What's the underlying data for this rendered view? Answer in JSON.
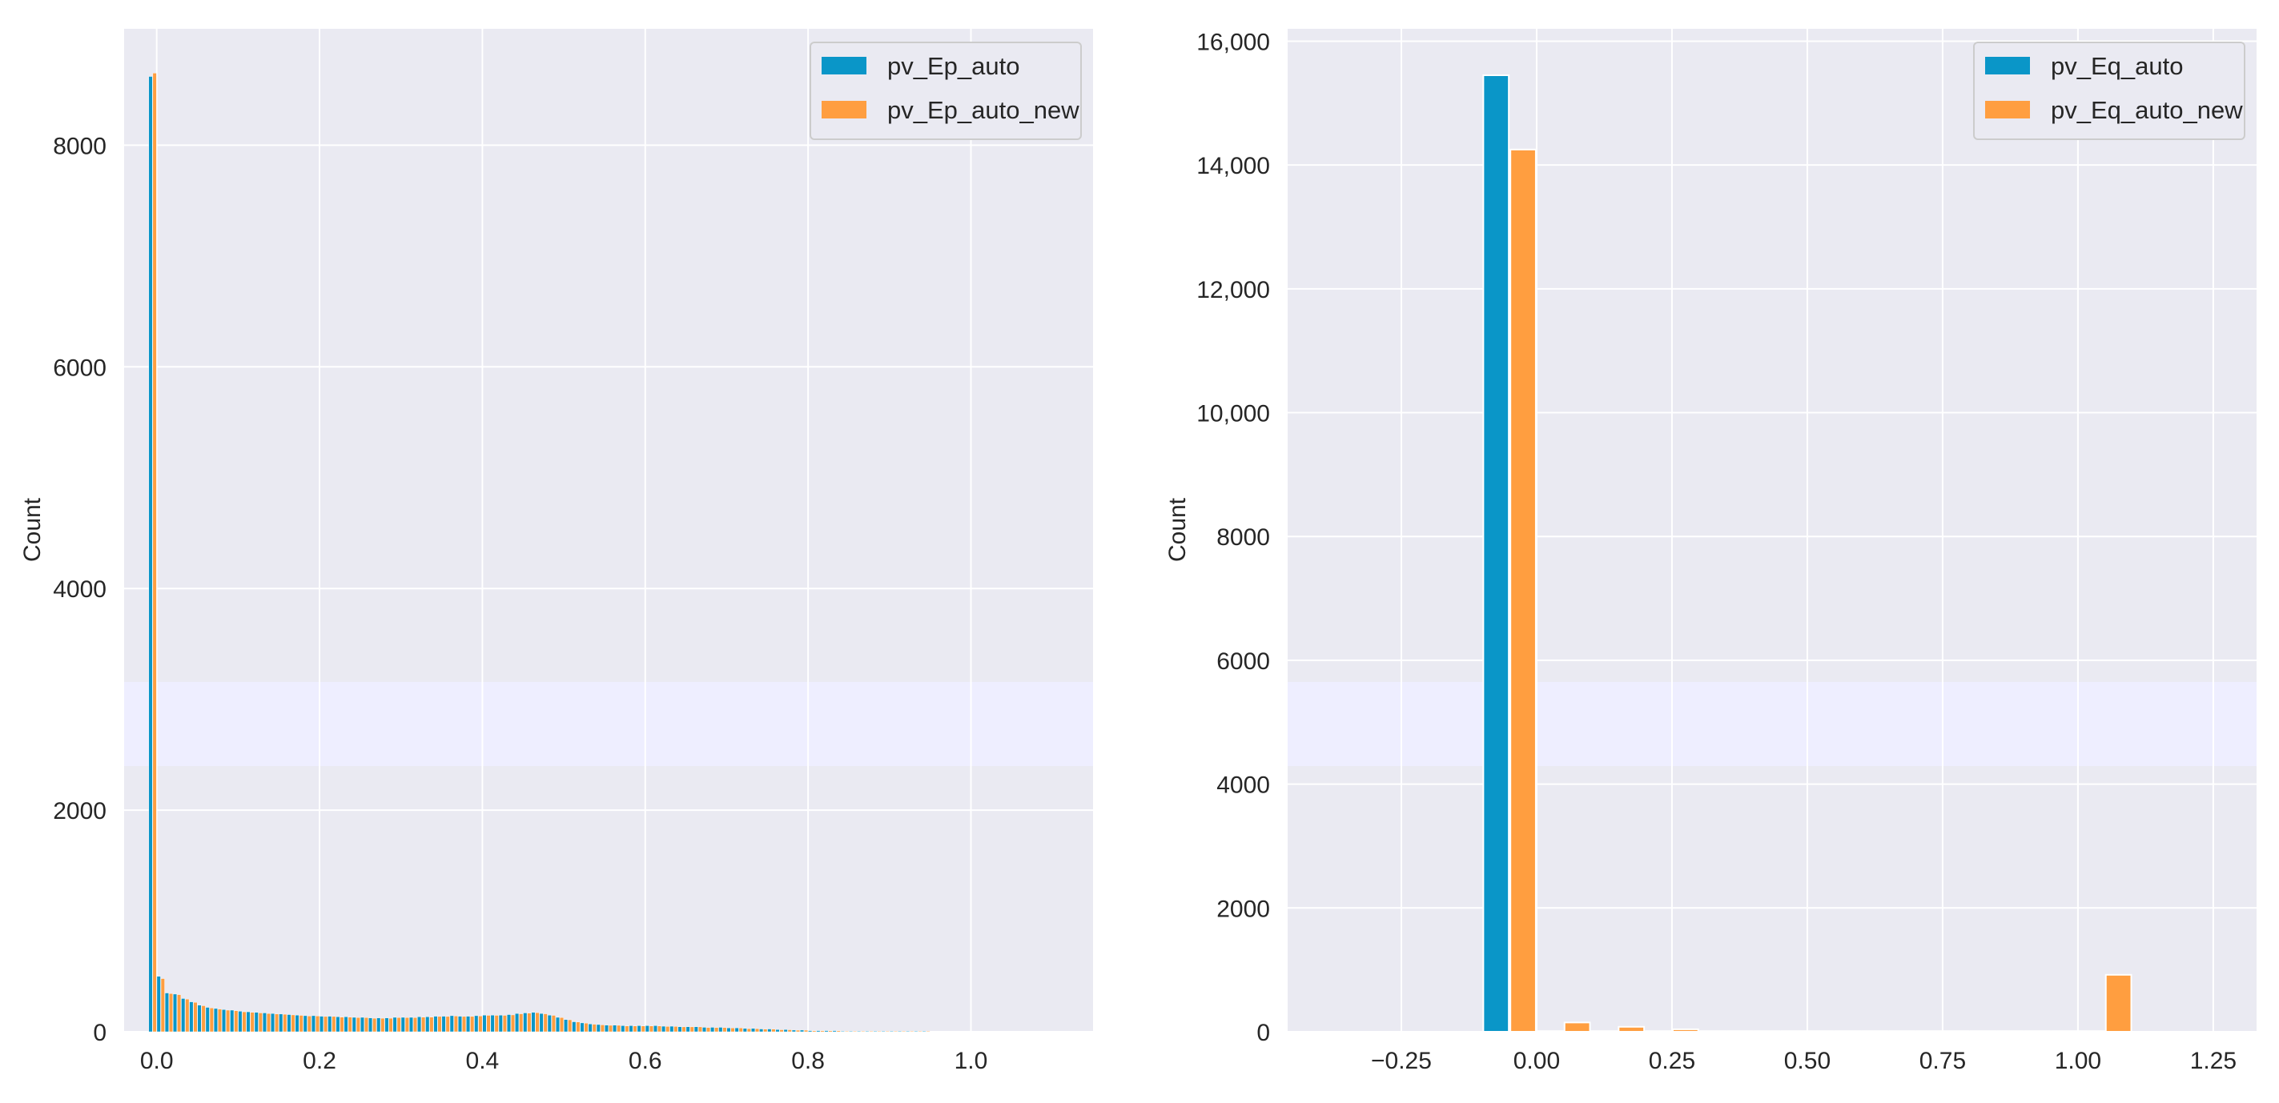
{
  "chart_data": [
    {
      "type": "bar",
      "title": "",
      "xlabel": "",
      "ylabel": "Count",
      "xlim": [
        -0.04,
        1.15
      ],
      "ylim": [
        0,
        9050
      ],
      "xticks": [
        0.0,
        0.2,
        0.4,
        0.6,
        0.8,
        1.0
      ],
      "xtick_labels": [
        "0.0",
        "0.2",
        "0.4",
        "0.6",
        "0.8",
        "1.0"
      ],
      "yticks": [
        0,
        2000,
        4000,
        6000,
        8000
      ],
      "ytick_labels": [
        "0",
        "2000",
        "4000",
        "6000",
        "8000"
      ],
      "grid": true,
      "legend_position": "top-right",
      "bin_centers": [
        -0.005,
        0.005,
        0.015,
        0.025,
        0.035,
        0.045,
        0.055,
        0.065,
        0.075,
        0.085,
        0.095,
        0.105,
        0.115,
        0.125,
        0.135,
        0.145,
        0.155,
        0.165,
        0.175,
        0.185,
        0.195,
        0.205,
        0.215,
        0.225,
        0.235,
        0.245,
        0.255,
        0.265,
        0.275,
        0.285,
        0.295,
        0.305,
        0.315,
        0.325,
        0.335,
        0.345,
        0.355,
        0.365,
        0.375,
        0.385,
        0.395,
        0.405,
        0.415,
        0.425,
        0.435,
        0.445,
        0.455,
        0.465,
        0.475,
        0.485,
        0.495,
        0.505,
        0.515,
        0.525,
        0.535,
        0.545,
        0.555,
        0.565,
        0.575,
        0.585,
        0.595,
        0.605,
        0.615,
        0.625,
        0.635,
        0.645,
        0.655,
        0.665,
        0.675,
        0.685,
        0.695,
        0.705,
        0.715,
        0.725,
        0.735,
        0.745,
        0.755,
        0.765,
        0.775,
        0.785,
        0.795,
        0.805,
        0.815,
        0.825,
        0.835,
        0.845,
        0.855,
        0.865,
        0.875,
        0.885,
        0.895,
        0.905,
        0.915,
        0.925,
        0.935,
        0.945
      ],
      "bin_width": 0.01,
      "series": [
        {
          "name": "pv_Ep_auto",
          "color": "#0a96c8",
          "values": [
            8620,
            500,
            350,
            340,
            300,
            270,
            240,
            220,
            210,
            200,
            195,
            185,
            180,
            175,
            170,
            165,
            160,
            155,
            150,
            145,
            145,
            140,
            140,
            135,
            135,
            130,
            130,
            125,
            125,
            125,
            130,
            130,
            130,
            135,
            135,
            140,
            140,
            145,
            140,
            140,
            145,
            150,
            150,
            150,
            155,
            165,
            170,
            175,
            165,
            150,
            130,
            110,
            90,
            80,
            70,
            65,
            60,
            60,
            55,
            55,
            55,
            55,
            55,
            50,
            50,
            45,
            45,
            45,
            40,
            40,
            40,
            35,
            35,
            30,
            30,
            25,
            25,
            20,
            20,
            15,
            15,
            10,
            10,
            10,
            10,
            5,
            5,
            5,
            5,
            5,
            5,
            3,
            3,
            2,
            2,
            2
          ]
        },
        {
          "name": "pv_Ep_auto_new",
          "color": "#ff9e40",
          "values": [
            8650,
            480,
            345,
            335,
            295,
            265,
            235,
            215,
            205,
            195,
            190,
            180,
            175,
            170,
            165,
            160,
            158,
            152,
            148,
            142,
            142,
            138,
            138,
            132,
            132,
            128,
            128,
            122,
            122,
            122,
            128,
            128,
            128,
            132,
            132,
            138,
            138,
            142,
            138,
            138,
            142,
            148,
            148,
            148,
            152,
            162,
            168,
            172,
            162,
            148,
            128,
            108,
            88,
            78,
            68,
            62,
            58,
            58,
            52,
            52,
            52,
            52,
            52,
            48,
            48,
            44,
            44,
            44,
            38,
            38,
            38,
            34,
            34,
            28,
            28,
            24,
            24,
            18,
            18,
            14,
            14,
            9,
            9,
            9,
            9,
            4,
            4,
            4,
            4,
            4,
            4,
            2,
            2,
            1,
            1,
            1
          ]
        }
      ]
    },
    {
      "type": "bar",
      "title": "",
      "xlabel": "",
      "ylabel": "Count",
      "xlim": [
        -0.46,
        1.33
      ],
      "ylim": [
        0,
        16200
      ],
      "xticks": [
        -0.25,
        0.0,
        0.25,
        0.5,
        0.75,
        1.0,
        1.25
      ],
      "xtick_labels": [
        "−0.25",
        "0.00",
        "0.25",
        "0.50",
        "0.75",
        "1.00",
        "1.25"
      ],
      "yticks": [
        0,
        2000,
        4000,
        6000,
        8000,
        10000,
        12000,
        14000,
        16000
      ],
      "ytick_labels": [
        "0",
        "2000",
        "4000",
        "6000",
        "8000",
        "10,000",
        "12,000",
        "14,000",
        "16,000"
      ],
      "grid": true,
      "legend_position": "top-right",
      "bin_centers": [
        -0.05,
        0.05,
        0.15,
        0.25,
        0.35,
        0.45,
        0.55,
        0.65,
        0.75,
        0.85,
        0.95,
        1.05
      ],
      "bin_width": 0.1,
      "series": [
        {
          "name": "pv_Eq_auto",
          "color": "#0a96c8",
          "values": [
            15450,
            10,
            5,
            5,
            3,
            2,
            2,
            2,
            2,
            2,
            2,
            2
          ]
        },
        {
          "name": "pv_Eq_auto_new",
          "color": "#ff9e40",
          "values": [
            14250,
            150,
            80,
            40,
            10,
            5,
            3,
            3,
            3,
            3,
            3,
            920
          ]
        }
      ]
    }
  ]
}
